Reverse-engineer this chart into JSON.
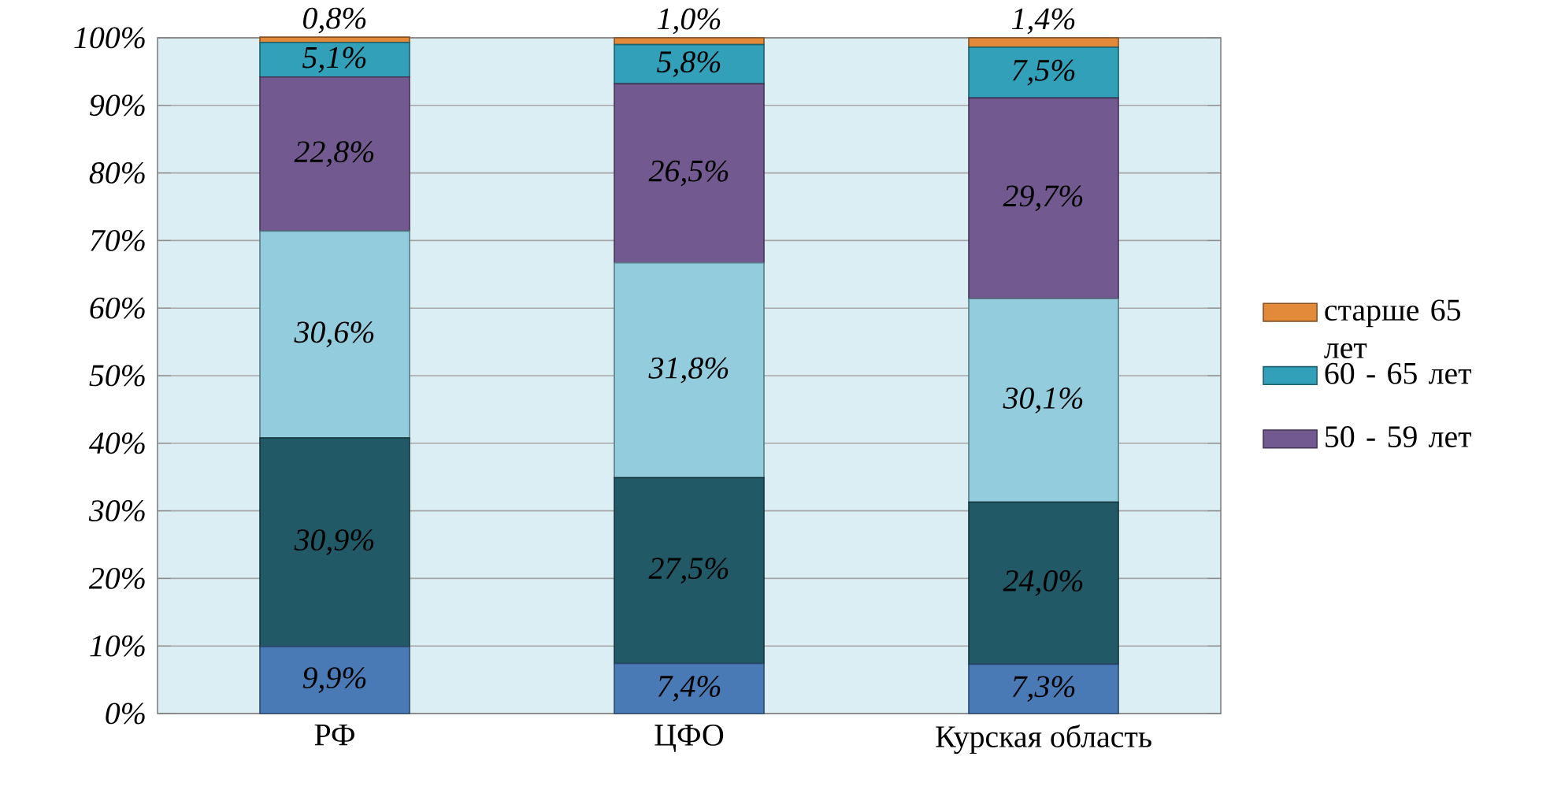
{
  "chart_data": {
    "type": "bar",
    "stacked": true,
    "categories": [
      "РФ",
      "ЦФО",
      "Курская область"
    ],
    "series": [
      {
        "color": "#4a7ab5",
        "values": [
          9.9,
          7.4,
          7.3
        ],
        "value_labels": [
          "9,9%",
          "7,4%",
          "7,3%"
        ]
      },
      {
        "color": "#215966",
        "values": [
          30.9,
          27.5,
          24.0
        ],
        "value_labels": [
          "30,9%",
          "27,5%",
          "24,0%"
        ]
      },
      {
        "color": "#93cddd",
        "values": [
          30.6,
          31.8,
          30.1
        ],
        "value_labels": [
          "30,6%",
          "31,8%",
          "30,1%"
        ]
      },
      {
        "name": "50 - 59 лет",
        "color": "#72598f",
        "values": [
          22.8,
          26.5,
          29.7
        ],
        "value_labels": [
          "22,8%",
          "26,5%",
          "29,7%"
        ]
      },
      {
        "name": "60 - 65 лет",
        "color": "#31a0b8",
        "values": [
          5.1,
          5.8,
          7.5
        ],
        "value_labels": [
          "5,1%",
          "5,8%",
          "7,5%"
        ]
      },
      {
        "name": "старше 65 лет",
        "color": "#e3893a",
        "values": [
          0.8,
          1.0,
          1.4
        ],
        "value_labels": [
          "0,8%",
          "1,0%",
          "1,4%"
        ]
      }
    ],
    "ylim": [
      0,
      100
    ],
    "yticks": [
      {
        "value": 0,
        "label": "0%"
      },
      {
        "value": 10,
        "label": "10%"
      },
      {
        "value": 20,
        "label": "20%"
      },
      {
        "value": 30,
        "label": "30%"
      },
      {
        "value": 40,
        "label": "40%"
      },
      {
        "value": 50,
        "label": "50%"
      },
      {
        "value": 60,
        "label": "60%"
      },
      {
        "value": 70,
        "label": "70%"
      },
      {
        "value": 80,
        "label": "80%"
      },
      {
        "value": 90,
        "label": "90%"
      },
      {
        "value": 100,
        "label": "100%"
      }
    ],
    "grid": "y",
    "legend": "right"
  }
}
